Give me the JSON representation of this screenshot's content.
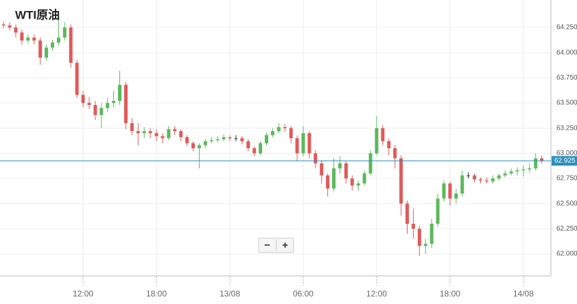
{
  "chart_data": {
    "type": "candlestick",
    "title": "WTI原油",
    "x": [
      5.5,
      6,
      6.5,
      7,
      7.5,
      8,
      8.5,
      9,
      9.5,
      10,
      10.5,
      11,
      11.5,
      12,
      12.5,
      13,
      13.5,
      14,
      14.5,
      15,
      15.5,
      16,
      16.5,
      17,
      17.5,
      18,
      18.5,
      19,
      19.5,
      20,
      20.5,
      21,
      21.5,
      22,
      22.5,
      23,
      23.5,
      24,
      24.5,
      25,
      25.5,
      26,
      26.5,
      27,
      27.5,
      28,
      28.5,
      29,
      29.5,
      30,
      30.5,
      31,
      31.5,
      32,
      32.5,
      33,
      33.5,
      34,
      34.5,
      35,
      35.5,
      36,
      36.5,
      37,
      37.5,
      38,
      38.5,
      39,
      39.5,
      40,
      40.5,
      41,
      41.5,
      42,
      42.5,
      43,
      43.5,
      44,
      44.5,
      45,
      45.5,
      46,
      46.5,
      47,
      47.5,
      48,
      48.5,
      49,
      49.5
    ],
    "open": [
      64.28,
      64.27,
      64.25,
      64.2,
      64.12,
      64.15,
      64.12,
      63.95,
      64.05,
      64.1,
      64.15,
      64.25,
      63.9,
      63.58,
      63.5,
      63.48,
      63.38,
      63.45,
      63.5,
      63.52,
      63.68,
      63.3,
      63.22,
      63.2,
      63.22,
      63.2,
      63.17,
      63.15,
      63.24,
      63.22,
      63.16,
      63.1,
      63.05,
      63.08,
      63.12,
      63.13,
      63.14,
      63.16,
      63.15,
      63.15,
      63.12,
      63.05,
      63.0,
      63.1,
      63.18,
      63.22,
      63.26,
      63.25,
      63.15,
      63.0,
      63.2,
      63.0,
      62.9,
      62.78,
      62.65,
      62.85,
      62.9,
      62.75,
      62.68,
      62.7,
      62.8,
      63.0,
      63.25,
      63.12,
      63.05,
      62.95,
      62.5,
      62.3,
      62.25,
      62.08,
      62.1,
      62.3,
      62.55,
      62.7,
      62.55,
      62.6,
      62.78,
      62.78,
      62.74,
      62.73,
      62.72,
      62.75,
      62.78,
      62.8,
      62.82,
      62.83,
      62.84,
      62.85,
      62.95
    ],
    "high": [
      64.31,
      64.3,
      64.28,
      64.23,
      64.18,
      64.18,
      64.15,
      64.08,
      64.13,
      64.32,
      64.3,
      64.28,
      63.93,
      63.62,
      63.56,
      63.52,
      63.5,
      63.55,
      63.62,
      63.82,
      63.71,
      63.35,
      63.3,
      63.26,
      63.25,
      63.24,
      63.2,
      63.27,
      63.27,
      63.24,
      63.18,
      63.12,
      63.1,
      63.14,
      63.16,
      63.17,
      63.19,
      63.18,
      63.18,
      63.17,
      63.14,
      63.07,
      63.12,
      63.21,
      63.25,
      63.3,
      63.29,
      63.27,
      63.18,
      63.27,
      63.22,
      63.03,
      62.93,
      62.8,
      62.95,
      62.97,
      62.92,
      62.78,
      62.73,
      62.83,
      63.03,
      63.37,
      63.28,
      63.15,
      63.08,
      62.98,
      62.53,
      62.45,
      62.28,
      62.15,
      62.35,
      62.6,
      62.73,
      62.72,
      62.65,
      62.83,
      62.81,
      62.8,
      62.76,
      62.76,
      62.78,
      62.8,
      62.83,
      62.85,
      62.86,
      62.88,
      62.9,
      63.0,
      62.98
    ],
    "low": [
      64.24,
      64.22,
      64.15,
      64.08,
      64.09,
      64.08,
      63.88,
      63.92,
      64.02,
      64.07,
      64.12,
      63.85,
      63.55,
      63.46,
      63.44,
      63.33,
      63.25,
      63.41,
      63.45,
      63.48,
      63.24,
      63.18,
      63.08,
      63.15,
      63.15,
      63.12,
      63.1,
      63.13,
      63.18,
      63.12,
      63.07,
      63.02,
      62.85,
      63.05,
      63.1,
      63.11,
      63.12,
      63.12,
      63.12,
      63.09,
      63.02,
      62.97,
      62.98,
      63.08,
      63.16,
      63.2,
      63.21,
      63.1,
      62.92,
      62.97,
      62.95,
      62.85,
      62.7,
      62.57,
      62.62,
      62.8,
      62.7,
      62.63,
      62.63,
      62.68,
      62.78,
      62.98,
      63.08,
      62.98,
      62.85,
      62.38,
      62.2,
      62.15,
      61.98,
      62.0,
      62.06,
      62.27,
      62.52,
      62.48,
      62.5,
      62.57,
      62.75,
      62.71,
      62.7,
      62.7,
      62.7,
      62.73,
      62.76,
      62.78,
      62.78,
      62.77,
      62.81,
      62.83,
      62.9
    ],
    "close": [
      64.27,
      64.25,
      64.2,
      64.12,
      64.15,
      64.12,
      63.95,
      64.05,
      64.1,
      64.15,
      64.25,
      63.9,
      63.58,
      63.5,
      63.48,
      63.38,
      63.45,
      63.5,
      63.52,
      63.68,
      63.3,
      63.22,
      63.2,
      63.22,
      63.2,
      63.17,
      63.15,
      63.24,
      63.22,
      63.16,
      63.1,
      63.05,
      63.08,
      63.12,
      63.13,
      63.14,
      63.16,
      63.15,
      63.15,
      63.12,
      63.05,
      63.0,
      63.1,
      63.18,
      63.22,
      63.26,
      63.25,
      63.15,
      63.0,
      63.2,
      63.0,
      62.9,
      62.78,
      62.65,
      62.85,
      62.9,
      62.75,
      62.68,
      62.7,
      62.8,
      63.0,
      63.25,
      63.12,
      63.05,
      62.95,
      62.5,
      62.3,
      62.25,
      62.08,
      62.1,
      62.3,
      62.55,
      62.7,
      62.55,
      62.6,
      62.78,
      62.78,
      62.74,
      62.73,
      62.72,
      62.75,
      62.78,
      62.8,
      62.82,
      62.83,
      62.84,
      62.85,
      62.95,
      62.925
    ],
    "up_color": "#5cb85c",
    "down_color": "#e05a5a",
    "xlim": [
      5.21,
      50.25
    ],
    "xticks": [
      {
        "value": 12,
        "label": "12:00"
      },
      {
        "value": 18,
        "label": "18:00"
      },
      {
        "value": 24,
        "label": "13/08"
      },
      {
        "value": 30,
        "label": "06:00"
      },
      {
        "value": 36,
        "label": "12:00"
      },
      {
        "value": 42,
        "label": "18:00"
      },
      {
        "value": 48,
        "label": "14/08"
      }
    ],
    "ylim": [
      61.782,
      64.523
    ],
    "yticks": [
      {
        "value": 62,
        "label": "62.000"
      },
      {
        "value": 62.25,
        "label": "62.250"
      },
      {
        "value": 62.5,
        "label": "62.500"
      },
      {
        "value": 62.75,
        "label": "62.750"
      },
      {
        "value": 63,
        "label": "63.000"
      },
      {
        "value": 63.25,
        "label": "63.250"
      },
      {
        "value": 63.5,
        "label": "63.500"
      },
      {
        "value": 63.75,
        "label": "63.750"
      },
      {
        "value": 64,
        "label": "64.000"
      },
      {
        "value": 64.25,
        "label": "64.250"
      }
    ],
    "last_price": 62.925,
    "last_price_color": "#2a8fbd",
    "grid": true,
    "zoom_out": "−",
    "zoom_in": "+"
  }
}
